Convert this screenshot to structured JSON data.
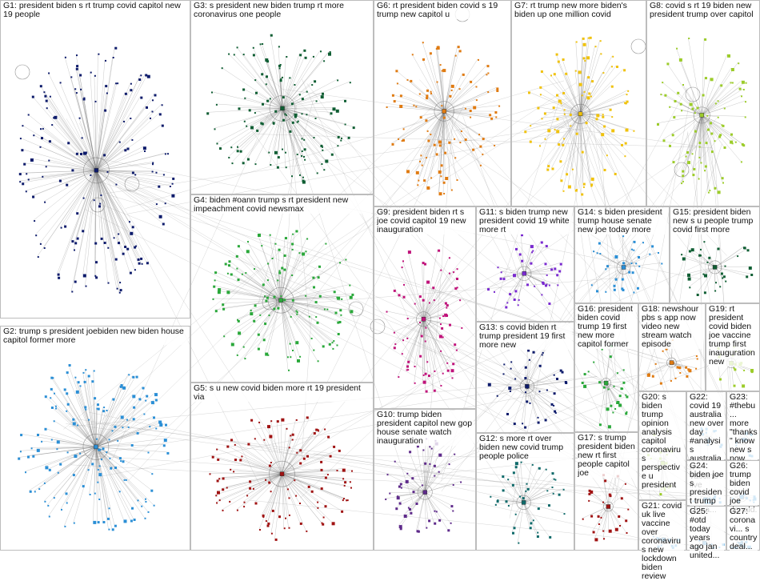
{
  "groups": [
    {
      "id": "G1",
      "label": "G1: president biden s rt trump covid capitol new 19 people",
      "color": "#0d1b6b"
    },
    {
      "id": "G2",
      "label": "G2: trump s president joebiden new biden house capitol former more",
      "color": "#2b8fd6"
    },
    {
      "id": "G3",
      "label": "G3: s president new biden trump rt more coronavirus one people",
      "color": "#0f5e33"
    },
    {
      "id": "G4",
      "label": "G4: biden #oann trump s rt president new impeachment covid newsmax",
      "color": "#2aa83a"
    },
    {
      "id": "G5",
      "label": "G5: s u new covid biden more rt 19 president via",
      "color": "#a01212"
    },
    {
      "id": "G6",
      "label": "G6: rt president biden covid s 19 trump new capitol u",
      "color": "#e07b12"
    },
    {
      "id": "G7",
      "label": "G7: rt trump new more biden's biden up one million covid",
      "color": "#f0c20c"
    },
    {
      "id": "G8",
      "label": "G8: covid s rt 19 biden new president trump over capitol",
      "color": "#9ccc2a"
    },
    {
      "id": "G9",
      "label": "G9: president biden rt s joe covid capitol 19 new inauguration",
      "color": "#c0127a"
    },
    {
      "id": "G10",
      "label": "G10: trump biden president capitol new gop house senate watch inauguration",
      "color": "#5e2a8a"
    },
    {
      "id": "G11",
      "label": "G11: s biden trump new president covid 19 white more rt",
      "color": "#7a2ad0"
    },
    {
      "id": "G12",
      "label": "G12: s more rt over biden new covid trump people police",
      "color": "#0e6a6a"
    },
    {
      "id": "G13",
      "label": "G13: s covid biden rt trump president 19 first more new",
      "color": "#0d1b6b"
    },
    {
      "id": "G14",
      "label": "G14: s biden president trump house senate new joe today more",
      "color": "#2b8fd6"
    },
    {
      "id": "G15",
      "label": "G15: president biden new s u people trump covid first more",
      "color": "#0f5e33"
    },
    {
      "id": "G16",
      "label": "G16: president biden covid trump 19 first new more capitol former",
      "color": "#2aa83a"
    },
    {
      "id": "G17",
      "label": "G17: s trump president biden new rt first people capitol joe",
      "color": "#a01212"
    },
    {
      "id": "G18",
      "label": "G18: newshour pbs s app now video new stream watch episode",
      "color": "#e07b12"
    },
    {
      "id": "G19",
      "label": "G19: rt president covid biden joe vaccine trump first inauguration new",
      "color": "#9ccc2a"
    },
    {
      "id": "G20",
      "label": "G20: s biden trump opinion analysis capitol coronavirus perspective u president",
      "color": "#9ccc2a"
    },
    {
      "id": "G21",
      "label": "G21: covid uk live vaccine over coronavirus new lockdown biden review",
      "color": "#2b8fd6"
    },
    {
      "id": "G22",
      "label": "G22: covid 19 australia new over day #analysis australian vaccine live",
      "color": "#2b8fd6"
    },
    {
      "id": "G23",
      "label": "G23: #thebu... more \"thanks\" know new s now...",
      "color": "#2b8fd6"
    },
    {
      "id": "G24",
      "label": "G24: biden joe s president trump china...",
      "color": "#2b8fd6"
    },
    {
      "id": "G25",
      "label": "G25: #otd today years ago jan united...",
      "color": "#2b8fd6"
    },
    {
      "id": "G26",
      "label": "G26: trump biden covid joe donald...",
      "color": "#2b8fd6"
    },
    {
      "id": "G27",
      "label": "G27: coronavi... s country deal...",
      "color": "#2b8fd6"
    }
  ]
}
